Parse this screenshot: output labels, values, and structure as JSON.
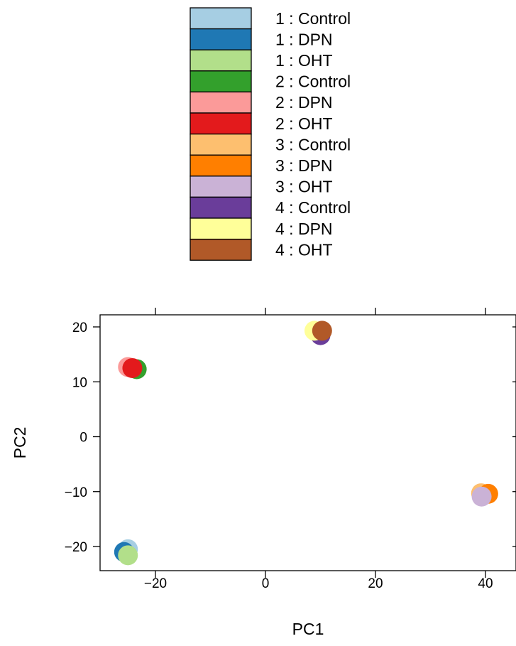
{
  "chart_data": {
    "type": "scatter",
    "xlabel": "PC1",
    "ylabel": "PC2",
    "xlim": [
      -30,
      45
    ],
    "ylim": [
      -24.5,
      22
    ],
    "x_ticks": [
      -20,
      0,
      20,
      40
    ],
    "y_ticks": [
      -20,
      -10,
      0,
      10,
      20
    ],
    "x_tick_labels": [
      "−20",
      "0",
      "20",
      "40"
    ],
    "y_tick_labels": [
      "−20",
      "−10",
      "0",
      "10",
      "20"
    ],
    "grid": false,
    "legend_position": "top",
    "series": [
      {
        "name": "1 : Control",
        "color": "#A6CEE3",
        "x": -25.0,
        "y": -20.5
      },
      {
        "name": "1 : DPN",
        "color": "#1F78B4",
        "x": -25.7,
        "y": -21.0
      },
      {
        "name": "1 : OHT",
        "color": "#B2DF8A",
        "x": -25.0,
        "y": -21.6
      },
      {
        "name": "2 : Control",
        "color": "#33A02C",
        "x": -23.4,
        "y": 12.3
      },
      {
        "name": "2 : DPN",
        "color": "#FB9A99",
        "x": -25.0,
        "y": 12.7
      },
      {
        "name": "2 : OHT",
        "color": "#E31A1C",
        "x": -24.2,
        "y": 12.5
      },
      {
        "name": "3 : Control",
        "color": "#FDBF6F",
        "x": 39.2,
        "y": -10.3
      },
      {
        "name": "3 : DPN",
        "color": "#FF7F00",
        "x": 40.5,
        "y": -10.4
      },
      {
        "name": "3 : OHT",
        "color": "#CAB2D6",
        "x": 39.3,
        "y": -10.9
      },
      {
        "name": "4 : Control",
        "color": "#6A3D9A",
        "x": 10.0,
        "y": 18.5
      },
      {
        "name": "4 : DPN",
        "color": "#FFFF99",
        "x": 8.9,
        "y": 19.3
      },
      {
        "name": "4 : OHT",
        "color": "#B15928",
        "x": 10.3,
        "y": 19.3
      }
    ]
  }
}
